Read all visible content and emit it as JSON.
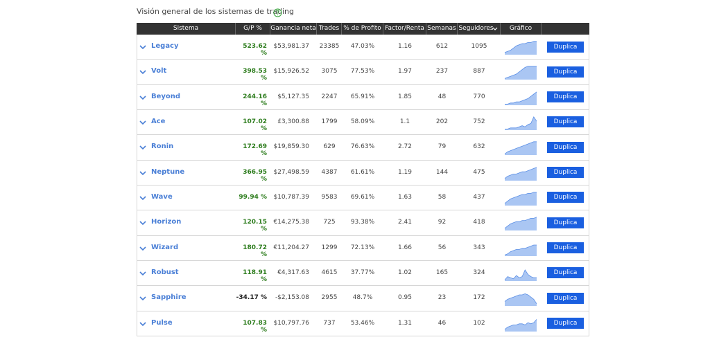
{
  "header": {
    "title": "Visión general de los sistemas de trading"
  },
  "table": {
    "columns": [
      "Sistema",
      "G/P %",
      "Ganancia neta",
      "Trades",
      "% de Profito",
      "Factor/Renta",
      "Semanas",
      "Seguidores",
      "Gráfico"
    ],
    "rows": [
      [
        "Legacy",
        "523.62 %",
        "$53,981.37",
        "23385",
        "47.03%",
        "1.16",
        "612",
        "1095"
      ],
      [
        "Volt",
        "398.53 %",
        "$15,926.52",
        "3075",
        "77.53%",
        "1.97",
        "237",
        "887"
      ],
      [
        "Beyond",
        "244.16 %",
        "$5,127.35",
        "2247",
        "65.91%",
        "1.85",
        "48",
        "770"
      ],
      [
        "Ace",
        "107.02 %",
        "£3,300.88",
        "1799",
        "58.09%",
        "1.1",
        "202",
        "752"
      ],
      [
        "Ronin",
        "172.69 %",
        "$19,859.30",
        "629",
        "76.63%",
        "2.72",
        "79",
        "632"
      ],
      [
        "Neptune",
        "366.95 %",
        "$27,498.59",
        "4387",
        "61.61%",
        "1.19",
        "144",
        "475"
      ],
      [
        "Wave",
        "99.94 %",
        "$10,787.39",
        "9583",
        "69.61%",
        "1.63",
        "58",
        "437"
      ],
      [
        "Horizon",
        "120.15 %",
        "€14,275.38",
        "725",
        "93.38%",
        "2.41",
        "92",
        "418"
      ],
      [
        "Wizard",
        "180.72 %",
        "€11,204.27",
        "1299",
        "72.13%",
        "1.66",
        "56",
        "343"
      ],
      [
        "Robust",
        "118.91 %",
        "€4,317.63",
        "4615",
        "37.77%",
        "1.02",
        "165",
        "324"
      ],
      [
        "Sapphire",
        "-34.17 %",
        "-$2,153.08",
        "2955",
        "48.7%",
        "0.95",
        "23",
        "172"
      ],
      [
        "Pulse",
        "107.83 %",
        "$10,797.76",
        "737",
        "53.46%",
        "1.31",
        "46",
        "102"
      ]
    ]
  },
  "actions": {
    "duplicate": "Duplica"
  }
}
